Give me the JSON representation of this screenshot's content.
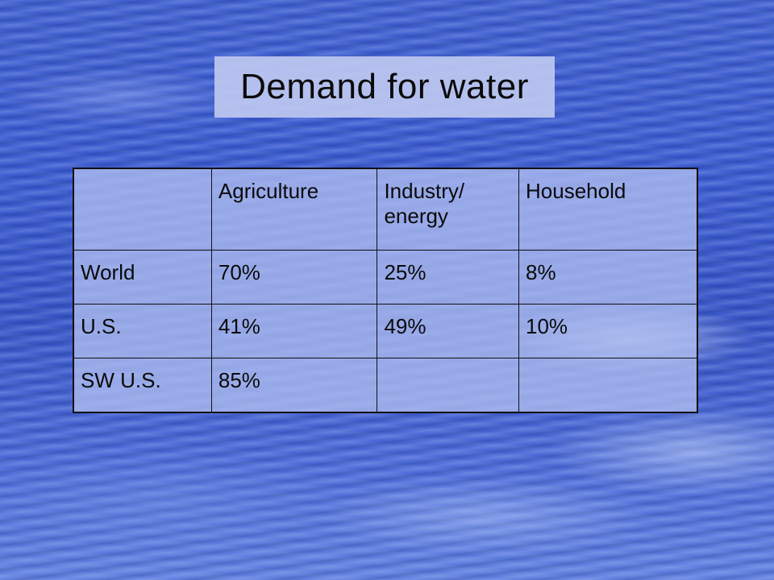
{
  "slide": {
    "title": "Demand for water"
  },
  "table": {
    "columns": [
      "",
      "Agriculture",
      "Industry/ energy",
      "Household"
    ],
    "rows": [
      {
        "label": "World",
        "agriculture": "70%",
        "industry_energy": "25%",
        "household": "8%"
      },
      {
        "label": "U.S.",
        "agriculture": "41%",
        "industry_energy": "49%",
        "household": "10%"
      },
      {
        "label": "SW U.S.",
        "agriculture": "85%",
        "industry_energy": "",
        "household": ""
      }
    ]
  }
}
